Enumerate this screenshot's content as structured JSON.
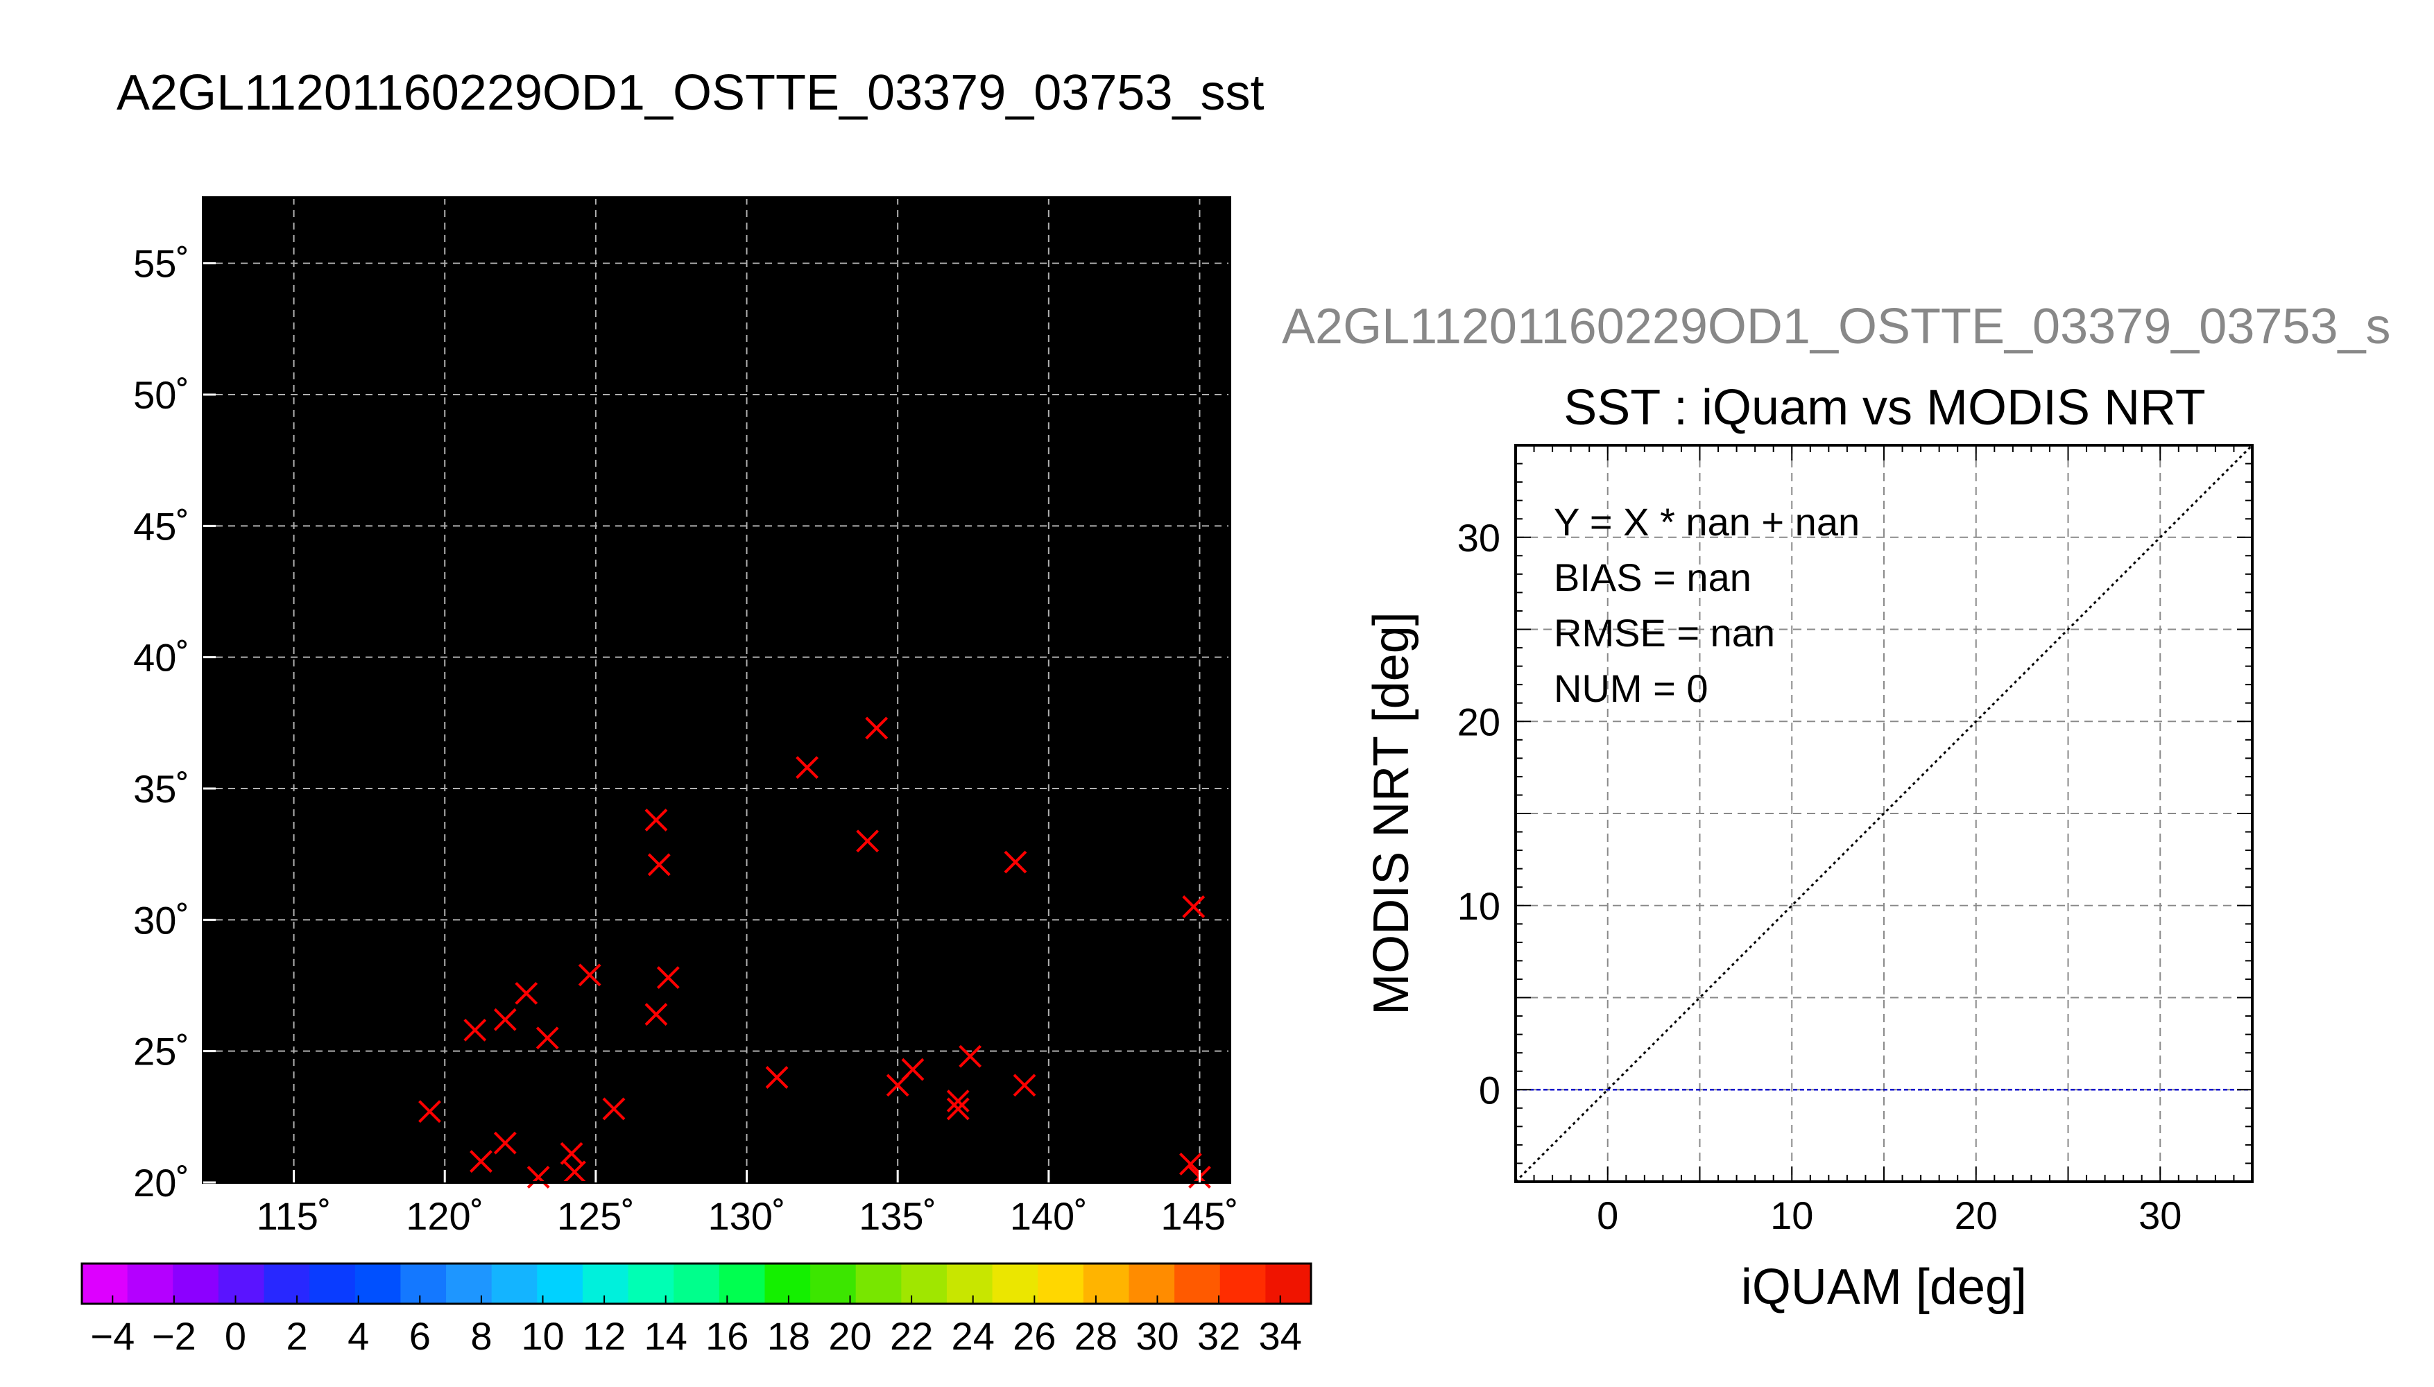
{
  "figure": {
    "main_title": "A2GL11201160229OD1_OSTTE_03379_03753_sst",
    "sub_title": "A2GL11201160229OD1_OSTTE_03379_03753_s"
  },
  "chart_data": [
    {
      "type": "map",
      "lon_range": [
        112,
        146
      ],
      "lat_range": [
        20,
        57.5
      ],
      "lon_ticks": [
        "115˚",
        "120˚",
        "125˚",
        "130˚",
        "135˚",
        "140˚",
        "145˚"
      ],
      "lon_tick_values": [
        115,
        120,
        125,
        130,
        135,
        140,
        145
      ],
      "lat_ticks": [
        "20˚",
        "25˚",
        "30˚",
        "35˚",
        "40˚",
        "45˚",
        "50˚",
        "55˚"
      ],
      "lat_tick_values": [
        20,
        25,
        30,
        35,
        40,
        45,
        50,
        55
      ],
      "grid": true,
      "marker_color": "#ff0000",
      "markers": [
        {
          "lon": 119.5,
          "lat": 22.7
        },
        {
          "lon": 121.2,
          "lat": 20.8
        },
        {
          "lon": 122.0,
          "lat": 21.5
        },
        {
          "lon": 123.1,
          "lat": 20.2
        },
        {
          "lon": 124.3,
          "lat": 20.4
        },
        {
          "lon": 124.2,
          "lat": 21.1
        },
        {
          "lon": 125.6,
          "lat": 22.8
        },
        {
          "lon": 121.0,
          "lat": 25.8
        },
        {
          "lon": 122.0,
          "lat": 26.2
        },
        {
          "lon": 122.7,
          "lat": 27.2
        },
        {
          "lon": 123.4,
          "lat": 25.5
        },
        {
          "lon": 124.8,
          "lat": 27.9
        },
        {
          "lon": 127.0,
          "lat": 26.4
        },
        {
          "lon": 127.4,
          "lat": 27.8
        },
        {
          "lon": 127.1,
          "lat": 32.1
        },
        {
          "lon": 127.0,
          "lat": 33.8
        },
        {
          "lon": 131.0,
          "lat": 24.0
        },
        {
          "lon": 132.0,
          "lat": 35.8
        },
        {
          "lon": 134.3,
          "lat": 37.3
        },
        {
          "lon": 134.0,
          "lat": 33.0
        },
        {
          "lon": 135.0,
          "lat": 23.7
        },
        {
          "lon": 135.5,
          "lat": 24.3
        },
        {
          "lon": 137.0,
          "lat": 22.8
        },
        {
          "lon": 137.0,
          "lat": 23.1
        },
        {
          "lon": 137.4,
          "lat": 24.8
        },
        {
          "lon": 138.9,
          "lat": 32.2
        },
        {
          "lon": 139.2,
          "lat": 23.7
        },
        {
          "lon": 144.8,
          "lat": 30.5
        },
        {
          "lon": 144.7,
          "lat": 20.7
        },
        {
          "lon": 145.0,
          "lat": 20.2
        }
      ]
    },
    {
      "type": "colorbar",
      "range": [
        -5,
        35
      ],
      "tick_labels": [
        "−4",
        "−2",
        "0",
        "2",
        "4",
        "6",
        "8",
        "10",
        "12",
        "14",
        "16",
        "18",
        "20",
        "22",
        "24",
        "26",
        "28",
        "30",
        "32",
        "34"
      ],
      "tick_values": [
        -4,
        -2,
        0,
        2,
        4,
        6,
        8,
        10,
        12,
        14,
        16,
        18,
        20,
        22,
        24,
        26,
        28,
        30,
        32,
        34
      ],
      "colors": [
        "#dd00ff",
        "#b400ff",
        "#8c00ff",
        "#5a14ff",
        "#2828ff",
        "#0a3cff",
        "#0050ff",
        "#1478ff",
        "#1e96ff",
        "#14b4ff",
        "#00d2ff",
        "#00f0dc",
        "#00ffb4",
        "#00ff8c",
        "#00ff50",
        "#14f000",
        "#3ce600",
        "#78e600",
        "#a0e600",
        "#c8e600",
        "#ebe600",
        "#ffd700",
        "#ffb400",
        "#ff8c00",
        "#ff5a00",
        "#ff2d00",
        "#f01400"
      ]
    },
    {
      "type": "scatter",
      "title": "SST : iQuam vs MODIS NRT",
      "xlabel": "iQUAM [deg]",
      "ylabel": "MODIS NRT [deg]",
      "xlim": [
        -5,
        35
      ],
      "ylim": [
        -5,
        35
      ],
      "x_ticks": [
        "0",
        "10",
        "20",
        "30"
      ],
      "x_tick_values": [
        0,
        10,
        20,
        30
      ],
      "y_ticks": [
        "0",
        "10",
        "20",
        "30"
      ],
      "y_tick_values": [
        0,
        10,
        20,
        30
      ],
      "grid": true,
      "points": [],
      "reference_lines": [
        {
          "kind": "identity",
          "style": "dotted",
          "color": "#000000"
        },
        {
          "kind": "y=0",
          "style": "dashed",
          "color": "#0000cc"
        }
      ],
      "stats": [
        "Y = X * nan + nan",
        "BIAS = nan",
        "RMSE = nan",
        "NUM = 0"
      ]
    }
  ]
}
